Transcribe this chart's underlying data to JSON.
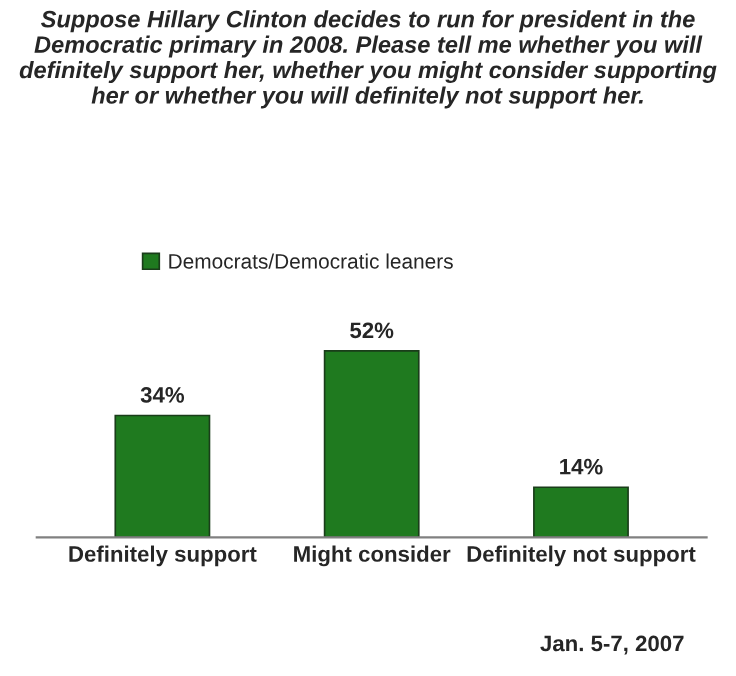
{
  "chart_data": {
    "type": "bar",
    "title": "Suppose Hillary Clinton decides to run for president in the Democratic primary in 2008. Please tell me whether you will definitely support her, whether you might consider supporting her or whether you will definitely not support her.",
    "categories": [
      "Definitely support",
      "Might consider",
      "Definitely not support"
    ],
    "series": [
      {
        "name": "Democrats/Democratic leaners",
        "color": "#1f7a1f",
        "values": [
          34,
          52,
          14
        ],
        "value_labels": [
          "34%",
          "52%",
          "14%"
        ]
      }
    ],
    "legend": "top left",
    "annotations": [
      "Jan. 5-7, 2007"
    ]
  }
}
